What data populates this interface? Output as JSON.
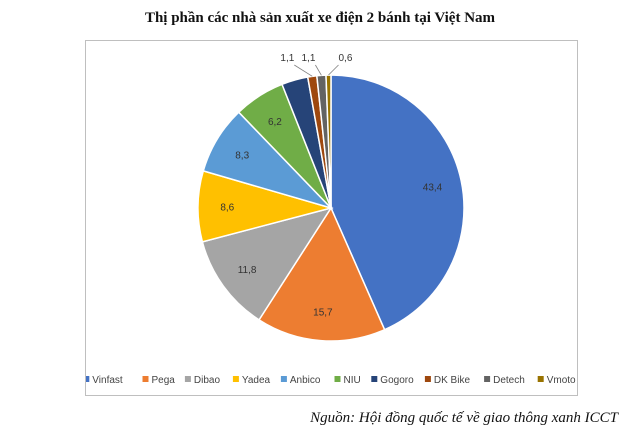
{
  "title": "Thị phần các nhà sản xuất xe điện 2 bánh tại Việt Nam",
  "source": "Nguồn: Hội đồng quốc tế về giao thông xanh ICCT",
  "chart_data": {
    "type": "pie",
    "title": "Thị phần các nhà sản xuất xe điện 2 bánh tại Việt Nam",
    "start_angle_deg": 0,
    "direction": "clockwise",
    "legend_position": "bottom",
    "slices": [
      {
        "name": "Vinfast",
        "value": 43.4,
        "label": "43,4",
        "color": "#4472C4"
      },
      {
        "name": "Pega",
        "value": 15.7,
        "label": "15,7",
        "color": "#ED7D31"
      },
      {
        "name": "Dibao",
        "value": 11.8,
        "label": "11,8",
        "color": "#A5A5A5"
      },
      {
        "name": "Yadea",
        "value": 8.6,
        "label": "8,6",
        "color": "#FFC000"
      },
      {
        "name": "Anbico",
        "value": 8.3,
        "label": "8,3",
        "color": "#5B9BD5"
      },
      {
        "name": "NIU",
        "value": 6.2,
        "label": "6,2",
        "color": "#70AD47"
      },
      {
        "name": "Gogoro",
        "value": 3.2,
        "label": "",
        "color": "#264478"
      },
      {
        "name": "DK Bike",
        "value": 1.1,
        "label": "1,1",
        "color": "#9E480E"
      },
      {
        "name": "Detech",
        "value": 1.1,
        "label": "1,1",
        "color": "#636363"
      },
      {
        "name": "Vmoto",
        "value": 0.6,
        "label": "0,6",
        "color": "#997300"
      }
    ]
  }
}
